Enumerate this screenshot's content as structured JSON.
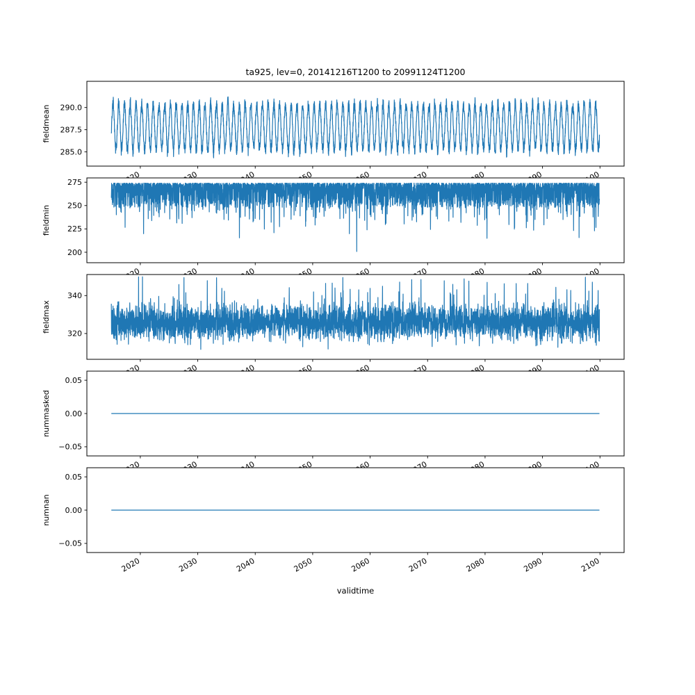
{
  "title": "ta925, lev=0, 20141216T1200 to 20991124T1200",
  "colors": {
    "line": "#1f77b4",
    "axis": "#000000",
    "background": "#ffffff"
  },
  "x_axis": {
    "label": "validtime",
    "lim": [
      2010.7,
      2104.2
    ],
    "data_start": 2014.96,
    "data_end": 2099.9,
    "ticks": [
      2020,
      2030,
      2040,
      2050,
      2060,
      2070,
      2080,
      2090,
      2100
    ],
    "tick_labels": [
      "2020",
      "2030",
      "2040",
      "2050",
      "2060",
      "2070",
      "2080",
      "2090",
      "2100"
    ],
    "tick_rotation_deg": 30
  },
  "chart_data": [
    {
      "type": "line",
      "name": "fieldmean",
      "ylabel": "fieldmean",
      "ylim": [
        283.4,
        292.95
      ],
      "yticks": [
        285.0,
        287.5,
        290.0
      ],
      "ytick_labels": [
        "285.0",
        "287.5",
        "290.0"
      ],
      "summary": "annual oscillation between about 284.5 and 291.5, occasional peak near 292.4",
      "gen": {
        "kind": "seasonal",
        "seed": 11,
        "base": 287.8,
        "amplitude": 2.55,
        "amp_jitter": 0.45,
        "noise": 0.5,
        "points": 3800
      }
    },
    {
      "type": "line",
      "name": "fieldmin",
      "ylabel": "fieldmin",
      "ylim": [
        188.8,
        279.6
      ],
      "yticks": [
        200,
        225,
        250,
        275
      ],
      "ytick_labels": [
        "200",
        "225",
        "250",
        "275"
      ],
      "summary": "dense band between ~245 and ~274 with frequent downward spikes to 210-230 and rare spikes near 200",
      "gen": {
        "kind": "min_spikes",
        "seed": 22,
        "ceiling": 274,
        "points": 3800
      }
    },
    {
      "type": "line",
      "name": "fieldmax",
      "ylabel": "fieldmax",
      "ylim": [
        306.4,
        351.1
      ],
      "yticks": [
        320,
        340
      ],
      "ytick_labels": [
        "320",
        "340"
      ],
      "summary": "dense noisy band between ~310 and ~345 with occasional spikes up to ~350",
      "gen": {
        "kind": "max_band",
        "seed": 33,
        "center": 326,
        "points": 3800
      }
    },
    {
      "type": "line",
      "name": "nummasked",
      "ylabel": "nummasked",
      "ylim": [
        -0.0637,
        0.0637
      ],
      "yticks": [
        -0.05,
        0.0,
        0.05
      ],
      "ytick_labels": [
        "−0.05",
        "0.00",
        "0.05"
      ],
      "summary": "constant zero over the whole period",
      "gen": {
        "kind": "flat",
        "seed": 44,
        "value": 0,
        "points": 2
      }
    },
    {
      "type": "line",
      "name": "numnan",
      "ylabel": "numnan",
      "ylim": [
        -0.0637,
        0.0637
      ],
      "yticks": [
        -0.05,
        0.0,
        0.05
      ],
      "ytick_labels": [
        "−0.05",
        "0.00",
        "0.05"
      ],
      "summary": "constant zero over the whole period",
      "gen": {
        "kind": "flat",
        "seed": 55,
        "value": 0,
        "points": 2
      }
    }
  ]
}
